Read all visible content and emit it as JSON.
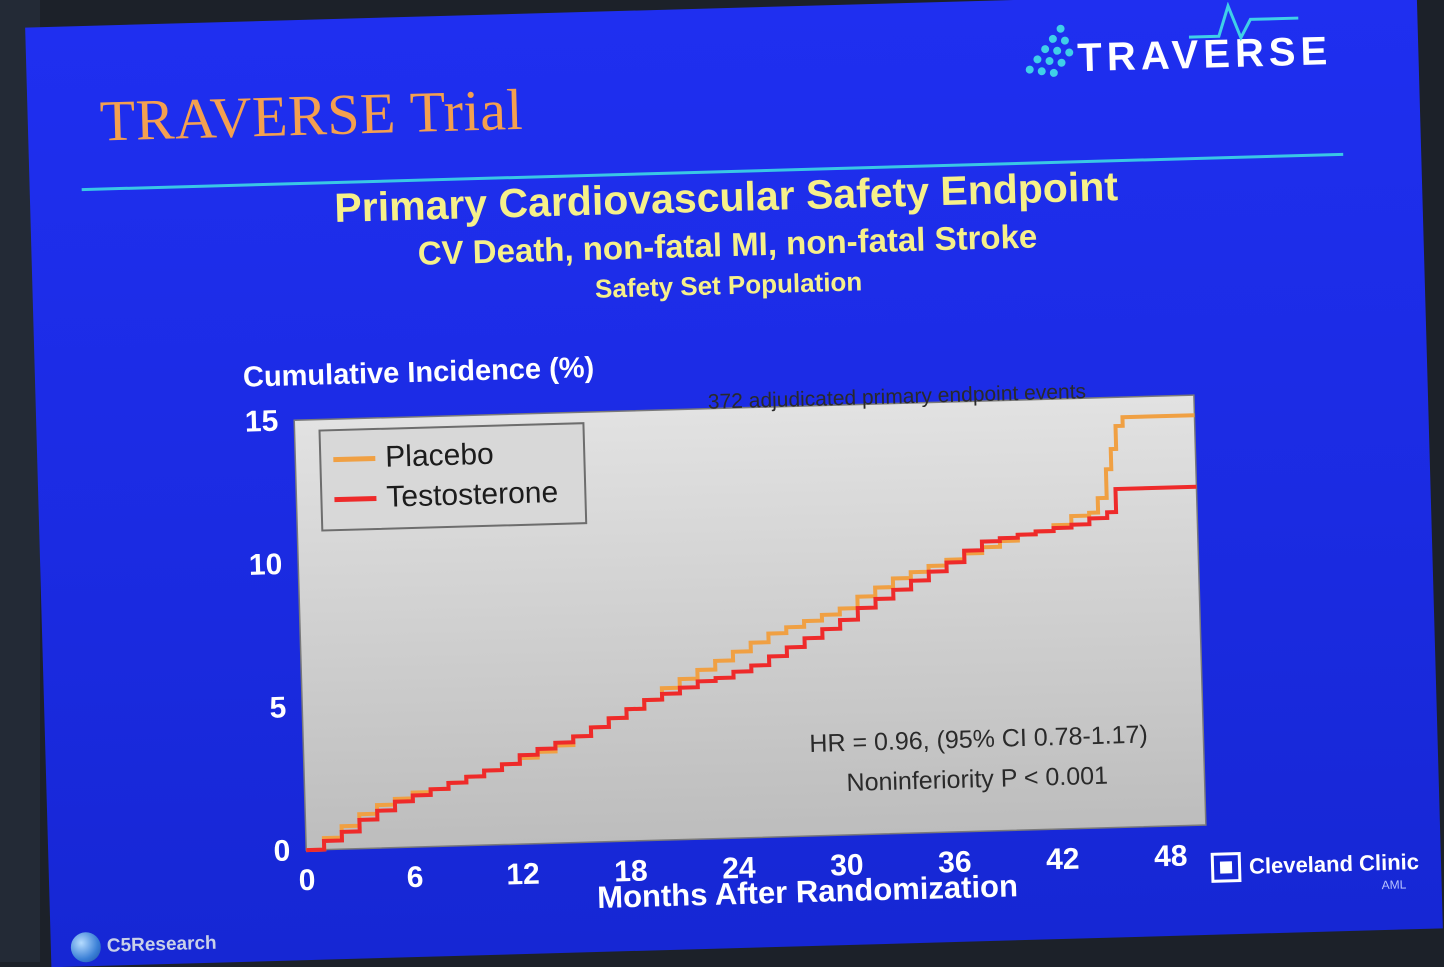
{
  "slide": {
    "title": "TRAVERSE Trial",
    "logo_text": "TRAVERSE",
    "subtitle1": "Primary Cardiovascular Safety Endpoint",
    "subtitle2": "CV Death, non-fatal MI, non-fatal Stroke",
    "subtitle3": "Safety Set Population",
    "colors": {
      "background": "#1f2ff0",
      "title": "#f4a04f",
      "subtitle": "#f6f08a",
      "rule": "#39c7e6",
      "plot_background": "#cfcfcf"
    }
  },
  "footer": {
    "clinic_name": "Cleveland Clinic",
    "clinic_sub": "AML",
    "research_logo": "C5Research",
    "icons": [
      "clinic-cross-icon",
      "globe-icon"
    ]
  },
  "chart_data": {
    "type": "line",
    "title": "",
    "xlabel": "Months After Randomization",
    "ylabel": "Cumulative Incidence (%)",
    "xlim": [
      0,
      50
    ],
    "ylim": [
      0,
      15
    ],
    "xticks": [
      0,
      6,
      12,
      18,
      24,
      30,
      36,
      42,
      48
    ],
    "yticks": [
      0,
      5,
      10,
      15
    ],
    "grid": false,
    "legend": {
      "placement": "top-left",
      "entries": [
        "Placebo",
        "Testosterone"
      ]
    },
    "annotations": {
      "events": "372 adjudicated primary endpoint events",
      "hr": "HR = 0.96, (95% CI 0.78-1.17)",
      "pvalue": "Noninferiority P < 0.001"
    },
    "series": [
      {
        "name": "Placebo",
        "color": "#f0a043",
        "step": true,
        "points": [
          [
            0,
            0
          ],
          [
            1,
            0.4
          ],
          [
            2,
            0.8
          ],
          [
            3,
            1.2
          ],
          [
            4,
            1.5
          ],
          [
            5,
            1.7
          ],
          [
            6,
            1.9
          ],
          [
            7,
            2.0
          ],
          [
            8,
            2.2
          ],
          [
            9,
            2.4
          ],
          [
            10,
            2.6
          ],
          [
            11,
            2.8
          ],
          [
            12,
            3.0
          ],
          [
            13,
            3.2
          ],
          [
            14,
            3.4
          ],
          [
            15,
            3.7
          ],
          [
            16,
            4.0
          ],
          [
            17,
            4.3
          ],
          [
            18,
            4.6
          ],
          [
            19,
            4.9
          ],
          [
            20,
            5.3
          ],
          [
            21,
            5.6
          ],
          [
            22,
            5.9
          ],
          [
            23,
            6.2
          ],
          [
            24,
            6.5
          ],
          [
            25,
            6.8
          ],
          [
            26,
            7.1
          ],
          [
            27,
            7.3
          ],
          [
            28,
            7.5
          ],
          [
            29,
            7.7
          ],
          [
            30,
            7.9
          ],
          [
            31,
            8.3
          ],
          [
            32,
            8.6
          ],
          [
            33,
            8.9
          ],
          [
            34,
            9.1
          ],
          [
            35,
            9.3
          ],
          [
            36,
            9.5
          ],
          [
            37,
            9.7
          ],
          [
            38,
            9.9
          ],
          [
            39,
            10.1
          ],
          [
            40,
            10.3
          ],
          [
            41,
            10.4
          ],
          [
            42,
            10.6
          ],
          [
            43,
            10.9
          ],
          [
            44,
            11.0
          ],
          [
            44.5,
            11.5
          ],
          [
            45,
            12.5
          ],
          [
            45.3,
            13.2
          ],
          [
            45.6,
            14.0
          ],
          [
            46,
            14.3
          ],
          [
            50,
            14.3
          ]
        ]
      },
      {
        "name": "Testosterone",
        "color": "#ee2a2a",
        "step": true,
        "points": [
          [
            0,
            0
          ],
          [
            1,
            0.3
          ],
          [
            2,
            0.6
          ],
          [
            3,
            1.0
          ],
          [
            4,
            1.3
          ],
          [
            5,
            1.6
          ],
          [
            6,
            1.8
          ],
          [
            7,
            2.0
          ],
          [
            8,
            2.2
          ],
          [
            9,
            2.4
          ],
          [
            10,
            2.6
          ],
          [
            11,
            2.8
          ],
          [
            12,
            3.1
          ],
          [
            13,
            3.3
          ],
          [
            14,
            3.5
          ],
          [
            15,
            3.7
          ],
          [
            16,
            4.0
          ],
          [
            17,
            4.3
          ],
          [
            18,
            4.6
          ],
          [
            19,
            4.9
          ],
          [
            20,
            5.1
          ],
          [
            21,
            5.3
          ],
          [
            22,
            5.5
          ],
          [
            23,
            5.6
          ],
          [
            24,
            5.8
          ],
          [
            25,
            6.0
          ],
          [
            26,
            6.3
          ],
          [
            27,
            6.6
          ],
          [
            28,
            6.9
          ],
          [
            29,
            7.2
          ],
          [
            30,
            7.5
          ],
          [
            31,
            7.9
          ],
          [
            32,
            8.2
          ],
          [
            33,
            8.5
          ],
          [
            34,
            8.8
          ],
          [
            35,
            9.1
          ],
          [
            36,
            9.4
          ],
          [
            37,
            9.8
          ],
          [
            38,
            10.1
          ],
          [
            39,
            10.2
          ],
          [
            40,
            10.3
          ],
          [
            41,
            10.4
          ],
          [
            42,
            10.5
          ],
          [
            43,
            10.6
          ],
          [
            44,
            10.8
          ],
          [
            45,
            11.0
          ],
          [
            45.5,
            11.8
          ],
          [
            50,
            11.8
          ]
        ]
      }
    ]
  }
}
